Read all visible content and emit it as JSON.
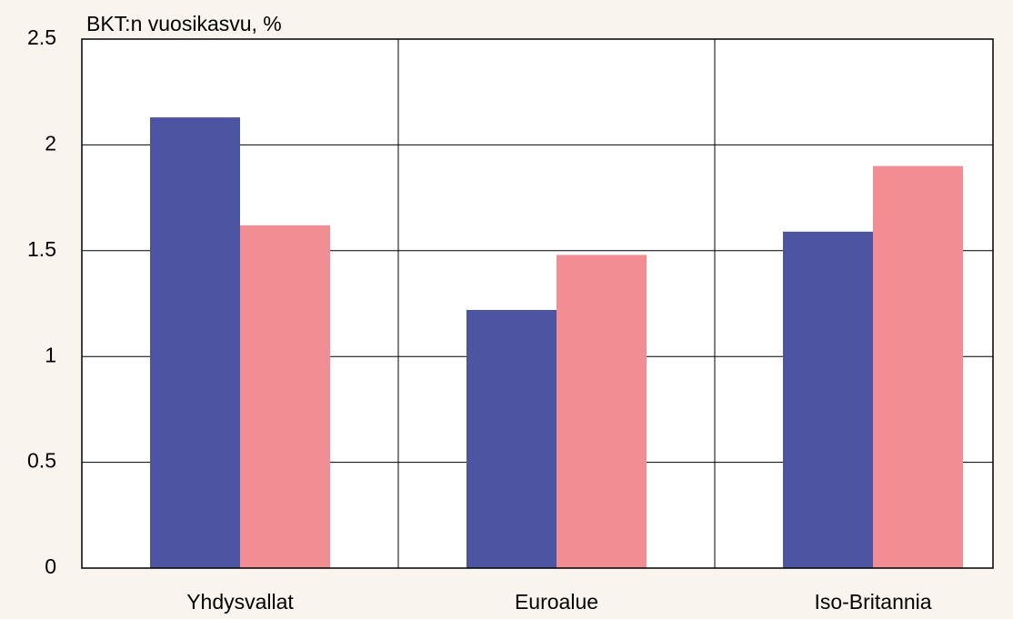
{
  "chart_data": {
    "type": "bar",
    "title": "BKT:n vuosikasvu, %",
    "categories": [
      "Yhdysvallat",
      "Euroalue",
      "Iso-Britannia"
    ],
    "series": [
      {
        "color": "#4d55a3",
        "values": [
          2.13,
          1.22,
          1.59
        ]
      },
      {
        "color": "#f28d94",
        "values": [
          1.62,
          1.48,
          1.9
        ]
      }
    ],
    "ylim": [
      0,
      2.5
    ],
    "yticks": [
      0,
      0.5,
      1,
      1.5,
      2,
      2.5
    ],
    "grid": true
  }
}
